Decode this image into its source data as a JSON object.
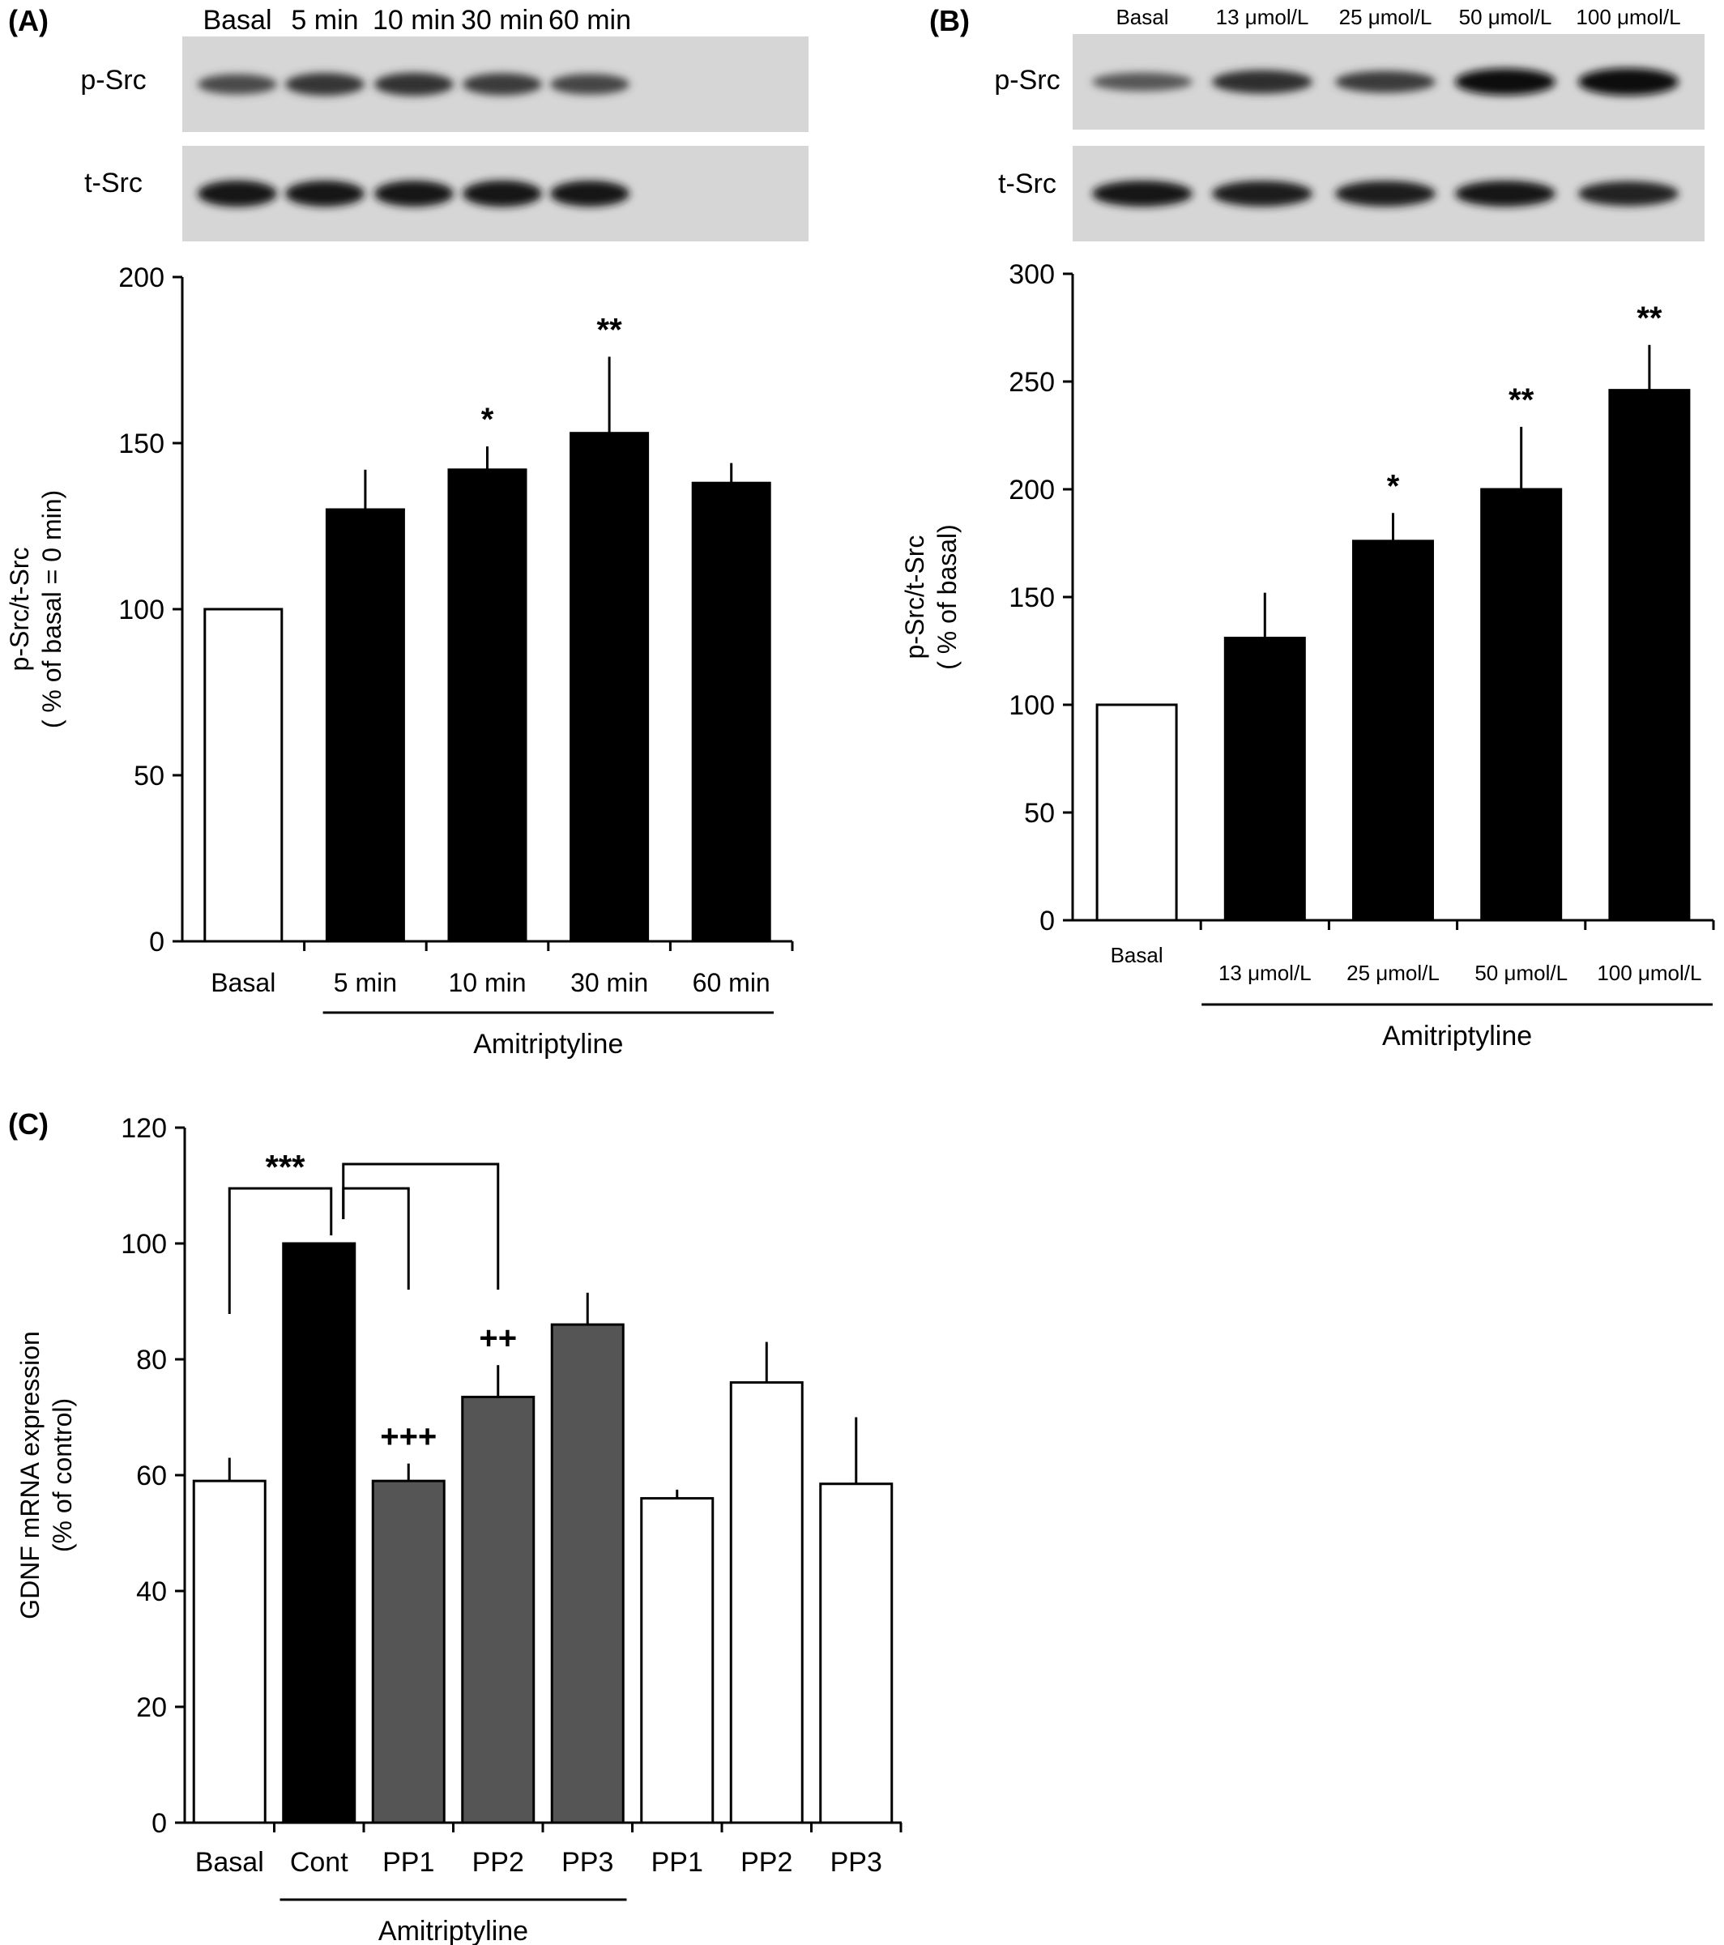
{
  "chart_data": [
    {
      "panel": "(A)",
      "type": "bar",
      "blot": {
        "lane_labels": [
          "Basal",
          "5 min",
          "10 min",
          "30 min",
          "60 min"
        ],
        "rows": [
          {
            "label": "p-Src",
            "intensity": [
              0.55,
              0.7,
              0.72,
              0.66,
              0.58
            ]
          },
          {
            "label": "t-Src",
            "intensity": [
              0.92,
              0.9,
              0.9,
              0.93,
              0.9
            ]
          }
        ]
      },
      "categories": [
        "Basal",
        "5 min",
        "10 min",
        "30 min",
        "60 min"
      ],
      "values": [
        100,
        130,
        142,
        153,
        138
      ],
      "errors": [
        0,
        12,
        7,
        23,
        6
      ],
      "fills": [
        "#ffffff",
        "#000000",
        "#000000",
        "#000000",
        "#000000"
      ],
      "annotations": [
        "",
        "",
        "*",
        "**",
        ""
      ],
      "ylabel": [
        "p-Src/t-Src",
        "( % of basal = 0 min)"
      ],
      "ylim": [
        0,
        200
      ],
      "yticks": [
        0,
        50,
        100,
        150,
        200
      ],
      "group_label": "Amitriptyline",
      "group_range": [
        1,
        4
      ]
    },
    {
      "panel": "(B)",
      "type": "bar",
      "blot": {
        "lane_labels": [
          "Basal",
          "13 μmol/L",
          "25 μmol/L",
          "50 μmol/L",
          "100 μmol/L"
        ],
        "rows": [
          {
            "label": "p-Src",
            "intensity": [
              0.45,
              0.75,
              0.65,
              0.95,
              1.0
            ]
          },
          {
            "label": "t-Src",
            "intensity": [
              0.9,
              0.88,
              0.88,
              0.9,
              0.82
            ]
          }
        ]
      },
      "categories": [
        "Basal",
        "13 μmol/L",
        "25 μmol/L",
        "50 μmol/L",
        "100 μmol/L"
      ],
      "values": [
        100,
        131,
        176,
        200,
        246
      ],
      "errors": [
        0,
        21,
        13,
        29,
        21
      ],
      "fills": [
        "#ffffff",
        "#000000",
        "#000000",
        "#000000",
        "#000000"
      ],
      "annotations": [
        "",
        "",
        "*",
        "**",
        "**"
      ],
      "ylabel": [
        "p-Src/t-Src",
        "( % of basal)"
      ],
      "ylim": [
        0,
        300
      ],
      "yticks": [
        0,
        50,
        100,
        150,
        200,
        250,
        300
      ],
      "group_label": "Amitriptyline",
      "group_range": [
        1,
        4
      ]
    },
    {
      "panel": "(C)",
      "type": "bar",
      "categories": [
        "Basal",
        "Cont",
        "PP1",
        "PP2",
        "PP3",
        "PP1",
        "PP2",
        "PP3"
      ],
      "values": [
        59,
        100,
        59,
        73.5,
        86,
        56,
        76,
        58.5
      ],
      "errors": [
        4,
        0,
        3,
        5.5,
        5.5,
        1.5,
        7,
        11.5
      ],
      "fills": [
        "#ffffff",
        "#000000",
        "#555555",
        "#555555",
        "#555555",
        "#ffffff",
        "#ffffff",
        "#ffffff"
      ],
      "annotations": [
        "",
        "",
        "+++",
        "++",
        "",
        "",
        "",
        ""
      ],
      "significance": {
        "label": "***",
        "brackets": [
          [
            0,
            1
          ],
          [
            1,
            2
          ],
          [
            1,
            3
          ]
        ]
      },
      "ylabel": [
        "GDNF mRNA expression",
        "(% of control)"
      ],
      "ylim": [
        0,
        120
      ],
      "yticks": [
        0,
        20,
        40,
        60,
        80,
        100,
        120
      ],
      "group_label": "Amitriptyline",
      "group_range": [
        1,
        4
      ]
    }
  ]
}
